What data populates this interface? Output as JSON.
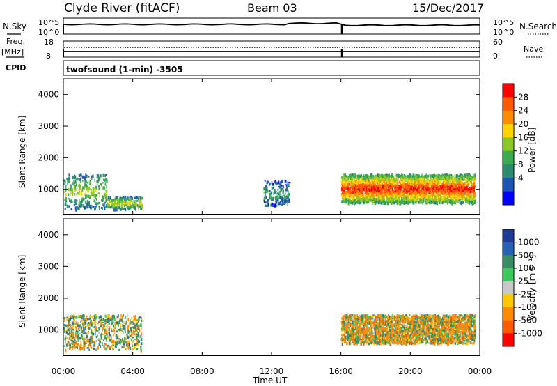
{
  "header": {
    "station": "Clyde River (fitACF)",
    "beam": "Beam 03",
    "date": "15/Dec/2017"
  },
  "strips": {
    "nsky_label": "N.Sky",
    "nsky_ticks": [
      "10^5",
      "10^0"
    ],
    "nsearch_label": "N.Search",
    "nsearch_ticks": [
      "10^5",
      "10^0"
    ],
    "freq_label_1": "Freq.",
    "freq_label_2": "[MHz]",
    "freq_ticks": [
      "18",
      "8"
    ],
    "nave_label": "Nave",
    "nave_ticks": [
      "60",
      "0"
    ],
    "cpid_label": "CPID",
    "cpid_value": "twofsound (1-min) -3505"
  },
  "panels": {
    "ylabel": "Slant Range [km]",
    "yticks": [
      "4000",
      "3000",
      "2000",
      "1000"
    ],
    "xticks": [
      "00:00",
      "04:00",
      "08:00",
      "12:00",
      "16:00",
      "20:00",
      "00:00"
    ],
    "xlabel": "Time UT"
  },
  "power_scale": {
    "label": "Power [dB]",
    "ticks": [
      "28",
      "24",
      "20",
      "16",
      "12",
      "8",
      "4"
    ],
    "colors": [
      "#ff0000",
      "#ff5a00",
      "#ff8c00",
      "#ffd200",
      "#8cc828",
      "#3caa50",
      "#2e8a6e",
      "#1e55b4",
      "#0000ff"
    ]
  },
  "velocity_scale": {
    "label": "Velocity",
    "unit": "[m s⁻¹]",
    "ticks": [
      "1000",
      "500",
      "100",
      "25",
      "-25",
      "-100",
      "-500",
      "-1000"
    ],
    "colors": [
      "#1e3c96",
      "#2860b4",
      "#3a8c64",
      "#3cc85a",
      "#c8c8c8",
      "#ffc800",
      "#ff8c00",
      "#ff5a00",
      "#ff0000"
    ]
  },
  "chart_data": {
    "type": "heatmap",
    "title": "Clyde River (fitACF)  Beam 03  15/Dec/2017",
    "xlabel": "Time UT",
    "ylabel": "Slant Range [km]",
    "xlim_hours": [
      0,
      24
    ],
    "ylim_km": [
      200,
      4500
    ],
    "panels": [
      {
        "quantity": "Power [dB]",
        "range": [
          0,
          30
        ],
        "echo_regions": [
          {
            "t_start": 16.0,
            "t_end": 23.7,
            "range_km": [
              600,
              1500
            ],
            "peak_db": 28
          },
          {
            "t_start": 0.0,
            "t_end": 2.5,
            "range_km": [
              400,
              1500
            ],
            "peak_db": 16
          },
          {
            "t_start": 2.5,
            "t_end": 4.5,
            "range_km": [
              400,
              800
            ],
            "peak_db": 18
          },
          {
            "t_start": 11.5,
            "t_end": 13.0,
            "range_km": [
              500,
              1300
            ],
            "peak_db": 10
          }
        ]
      },
      {
        "quantity": "Velocity [m s-1]",
        "range": [
          -1000,
          1000
        ],
        "echo_regions": [
          {
            "t_start": 16.0,
            "t_end": 23.7,
            "range_km": [
              600,
              1500
            ],
            "dominant_velocity": -100
          },
          {
            "t_start": 0.0,
            "t_end": 4.5,
            "range_km": [
              400,
              1500
            ],
            "dominant_velocity": 100
          }
        ]
      }
    ],
    "nsky_log_level": 4.6,
    "nsearch_log_level": 4.6,
    "freq_mhz": 10.5,
    "nave": 22
  }
}
